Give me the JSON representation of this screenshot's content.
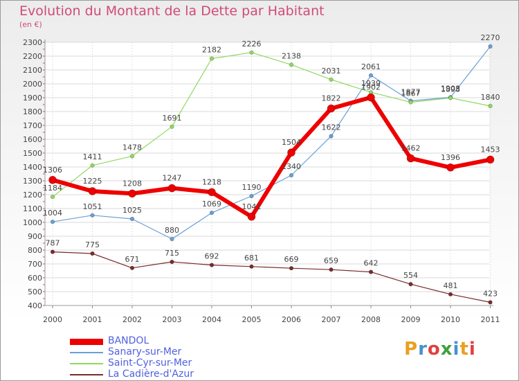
{
  "title": "Evolution du Montant de la Dette par Habitant",
  "unit": "(en €)",
  "logo": {
    "letters": [
      "P",
      "r",
      "o",
      "x",
      "i",
      "t",
      "i"
    ],
    "colors": [
      "#e8a020",
      "#4a90d0",
      "#e04040",
      "#40a040",
      "#4a90d0",
      "#e8a020",
      "#e04040"
    ]
  },
  "chart_data": {
    "type": "line",
    "title": "Evolution du Montant de la Dette par Habitant",
    "unit": "(en €)",
    "x": [
      "2000",
      "2001",
      "2002",
      "2003",
      "2004",
      "2005",
      "2006",
      "2007",
      "2008",
      "2009",
      "2010",
      "2011"
    ],
    "ylim": [
      400,
      2300
    ],
    "yticks": [
      400,
      500,
      600,
      700,
      800,
      900,
      1000,
      1100,
      1200,
      1300,
      1400,
      1500,
      1600,
      1700,
      1800,
      1900,
      2000,
      2100,
      2200,
      2300
    ],
    "grid": true,
    "legend_position": "bottom-left",
    "series": [
      {
        "name": "BANDOL",
        "color": "#ee0000",
        "values": [
          1306,
          1225,
          1208,
          1247,
          1218,
          1041,
          1504,
          1822,
          1902,
          1462,
          1396,
          1453
        ]
      },
      {
        "name": "Sanary-sur-Mer",
        "color": "#6a9fd4",
        "values": [
          1004,
          1051,
          1025,
          880,
          1069,
          1190,
          1340,
          1622,
          2061,
          1877,
          1903,
          2270
        ]
      },
      {
        "name": "Saint-Cyr-sur-Mer",
        "color": "#90d860",
        "values": [
          1184,
          1411,
          1478,
          1691,
          2182,
          2226,
          2138,
          2031,
          1939,
          1867,
          1898,
          1840
        ]
      },
      {
        "name": "La Cadière-d'Azur",
        "color": "#7a2a2a",
        "values": [
          787,
          775,
          671,
          715,
          692,
          681,
          669,
          659,
          642,
          554,
          481,
          423
        ]
      }
    ]
  }
}
